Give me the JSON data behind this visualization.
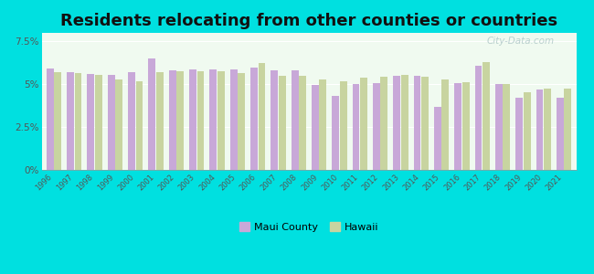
{
  "title": "Residents relocating from other counties or countries",
  "years": [
    1996,
    1997,
    1998,
    1999,
    2000,
    2001,
    2002,
    2003,
    2004,
    2005,
    2006,
    2007,
    2008,
    2009,
    2010,
    2011,
    2012,
    2013,
    2014,
    2015,
    2016,
    2017,
    2018,
    2019,
    2020,
    2021
  ],
  "maui_county": [
    5.9,
    5.7,
    5.6,
    5.55,
    5.7,
    6.5,
    5.8,
    5.85,
    5.85,
    5.85,
    6.0,
    5.8,
    5.8,
    4.95,
    4.3,
    5.0,
    5.05,
    5.5,
    5.5,
    3.7,
    5.05,
    6.1,
    5.0,
    4.2,
    4.7,
    4.2
  ],
  "hawaii": [
    5.7,
    5.65,
    5.55,
    5.3,
    5.2,
    5.7,
    5.75,
    5.75,
    5.75,
    5.65,
    6.25,
    5.5,
    5.5,
    5.3,
    5.2,
    5.4,
    5.45,
    5.55,
    5.45,
    5.3,
    5.1,
    6.3,
    5.0,
    4.55,
    4.75,
    4.75
  ],
  "maui_color": "#c8a8d8",
  "hawaii_color": "#c8d4a0",
  "background_color": "#00e0e0",
  "plot_bg_top": "#f0faf0",
  "plot_bg_bottom": "#e0f4e8",
  "yticks": [
    0.0,
    2.5,
    5.0,
    7.5
  ],
  "ytick_labels": [
    "0%",
    "2.5%",
    "5%",
    "7.5%"
  ],
  "ylim": [
    0,
    8.0
  ],
  "title_fontsize": 13,
  "legend_maui": "Maui County",
  "legend_hawaii": "Hawaii"
}
